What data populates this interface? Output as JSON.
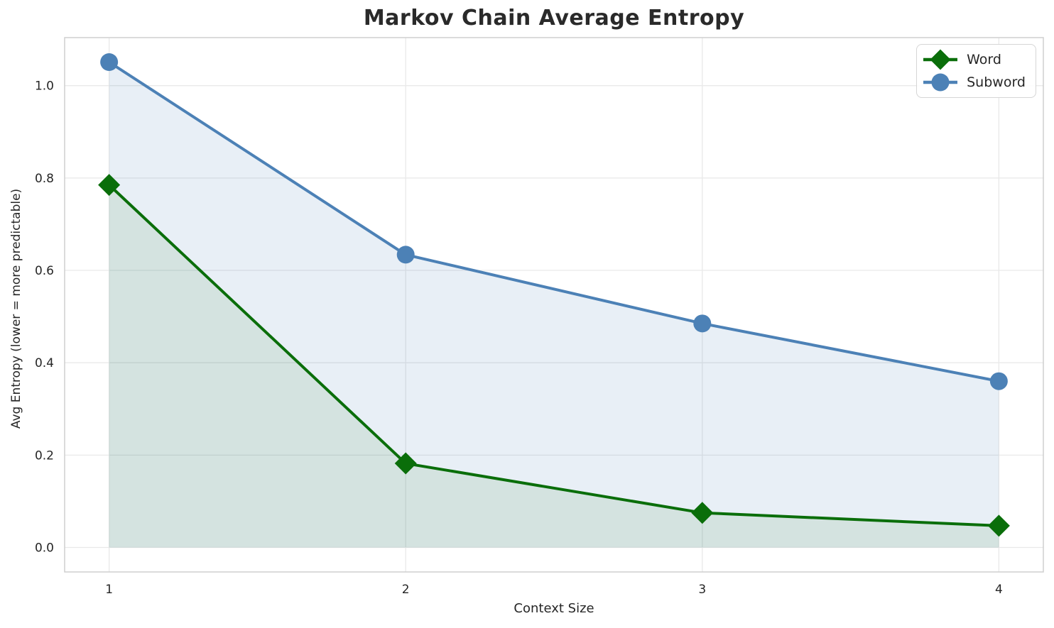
{
  "chart_data": {
    "type": "line",
    "title": "Markov Chain Average Entropy",
    "xlabel": "Context Size",
    "ylabel": "Avg Entropy (lower = more predictable)",
    "x": [
      1,
      2,
      3,
      4
    ],
    "series": [
      {
        "name": "Word",
        "values": [
          0.785,
          0.182,
          0.075,
          0.047
        ],
        "color": "#0a6e0a",
        "marker": "diamond",
        "fill_to_zero": true,
        "fill_alpha": 0.09
      },
      {
        "name": "Subword",
        "values": [
          1.051,
          0.634,
          0.485,
          0.36
        ],
        "color": "#4c81b6",
        "marker": "circle",
        "fill_to_zero": true,
        "fill_alpha": 0.13
      }
    ],
    "x_ticks": [
      "1",
      "2",
      "3",
      "4"
    ],
    "y_ticks": [
      "0.0",
      "0.2",
      "0.4",
      "0.6",
      "0.8",
      "1.0"
    ],
    "xlim": [
      0.85,
      4.15
    ],
    "ylim": [
      -0.053,
      1.104
    ],
    "grid": true,
    "grid_color": "#e9e9e9",
    "frame_color": "#cfcfcf",
    "legend_position": "upper right",
    "line_width": 4
  }
}
